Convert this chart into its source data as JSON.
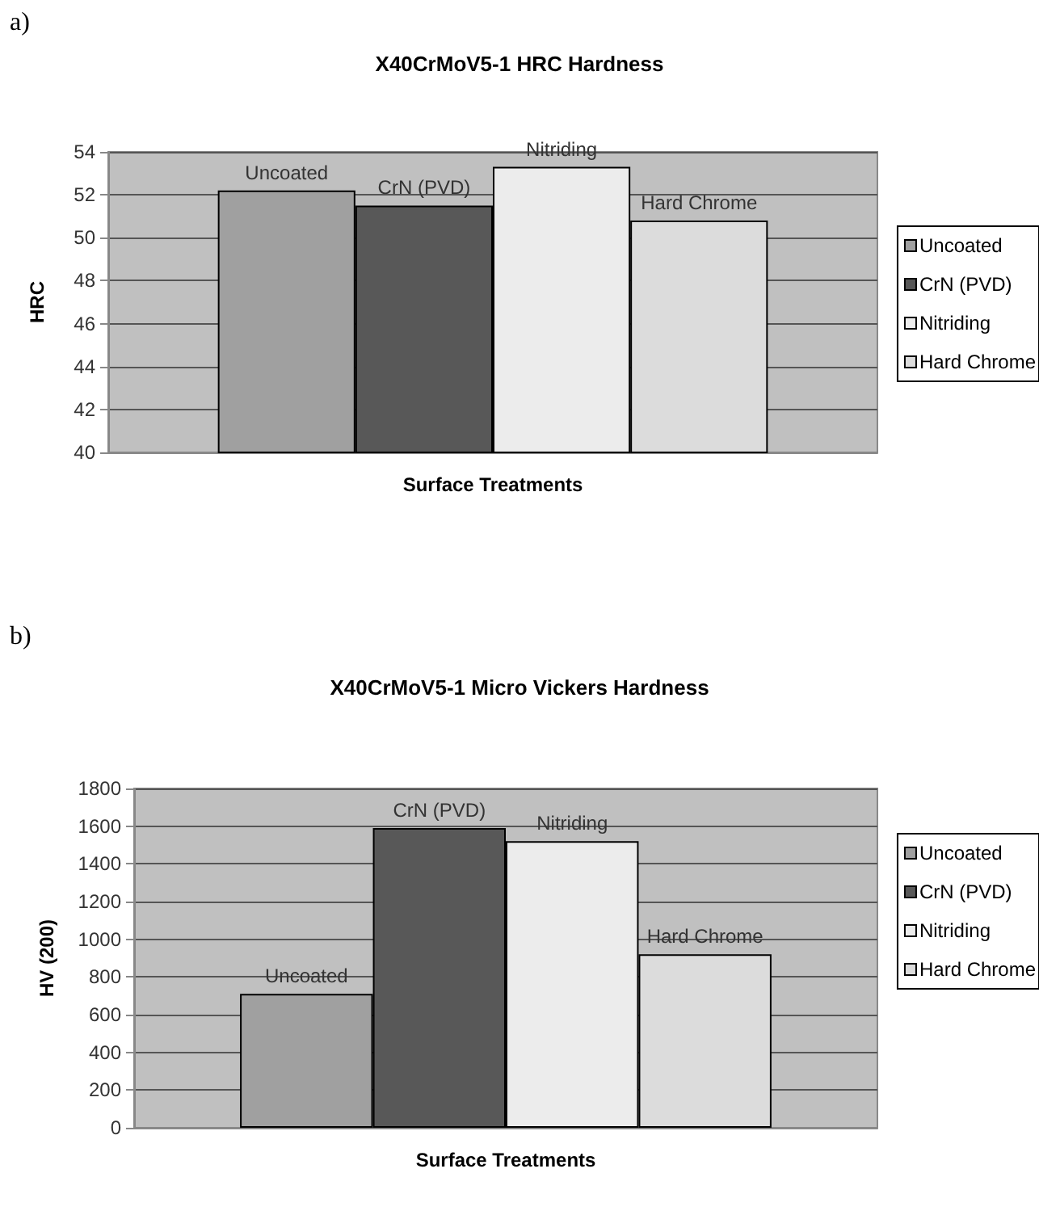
{
  "chart_data": [
    {
      "type": "bar",
      "title": "X40CrMoV5-1 HRC Hardness",
      "xlabel": "Surface Treatments",
      "ylabel": "HRC",
      "annotations": [
        "a)"
      ],
      "categories": [
        null
      ],
      "series": [
        {
          "name": "Uncoated",
          "color": "#a0a0a0",
          "values": [
            52.2
          ]
        },
        {
          "name": "CrN (PVD)",
          "color": "#585858",
          "values": [
            51.5
          ]
        },
        {
          "name": "Nitriding",
          "color": "#ececec",
          "values": [
            53.3
          ]
        },
        {
          "name": "Hard Chrome",
          "color": "#dcdcdc",
          "values": [
            50.8
          ]
        }
      ],
      "ylim": [
        40,
        54
      ],
      "yticks": [
        40,
        42,
        44,
        46,
        48,
        50,
        52,
        54
      ],
      "grid": "y",
      "legend": "right"
    },
    {
      "type": "bar",
      "title": "X40CrMoV5-1 Micro Vickers Hardness",
      "xlabel": "Surface Treatments",
      "ylabel": "HV (200)",
      "annotations": [
        "b)"
      ],
      "categories": [
        null
      ],
      "series": [
        {
          "name": "Uncoated",
          "color": "#a0a0a0",
          "values": [
            710
          ]
        },
        {
          "name": "CrN (PVD)",
          "color": "#585858",
          "values": [
            1590
          ]
        },
        {
          "name": "Nitriding",
          "color": "#ececec",
          "values": [
            1520
          ]
        },
        {
          "name": "Hard Chrome",
          "color": "#dcdcdc",
          "values": [
            920
          ]
        }
      ],
      "ylim": [
        0,
        1800
      ],
      "yticks": [
        0,
        200,
        400,
        600,
        800,
        1000,
        1200,
        1400,
        1600,
        1800
      ],
      "grid": "y",
      "legend": "right"
    }
  ]
}
